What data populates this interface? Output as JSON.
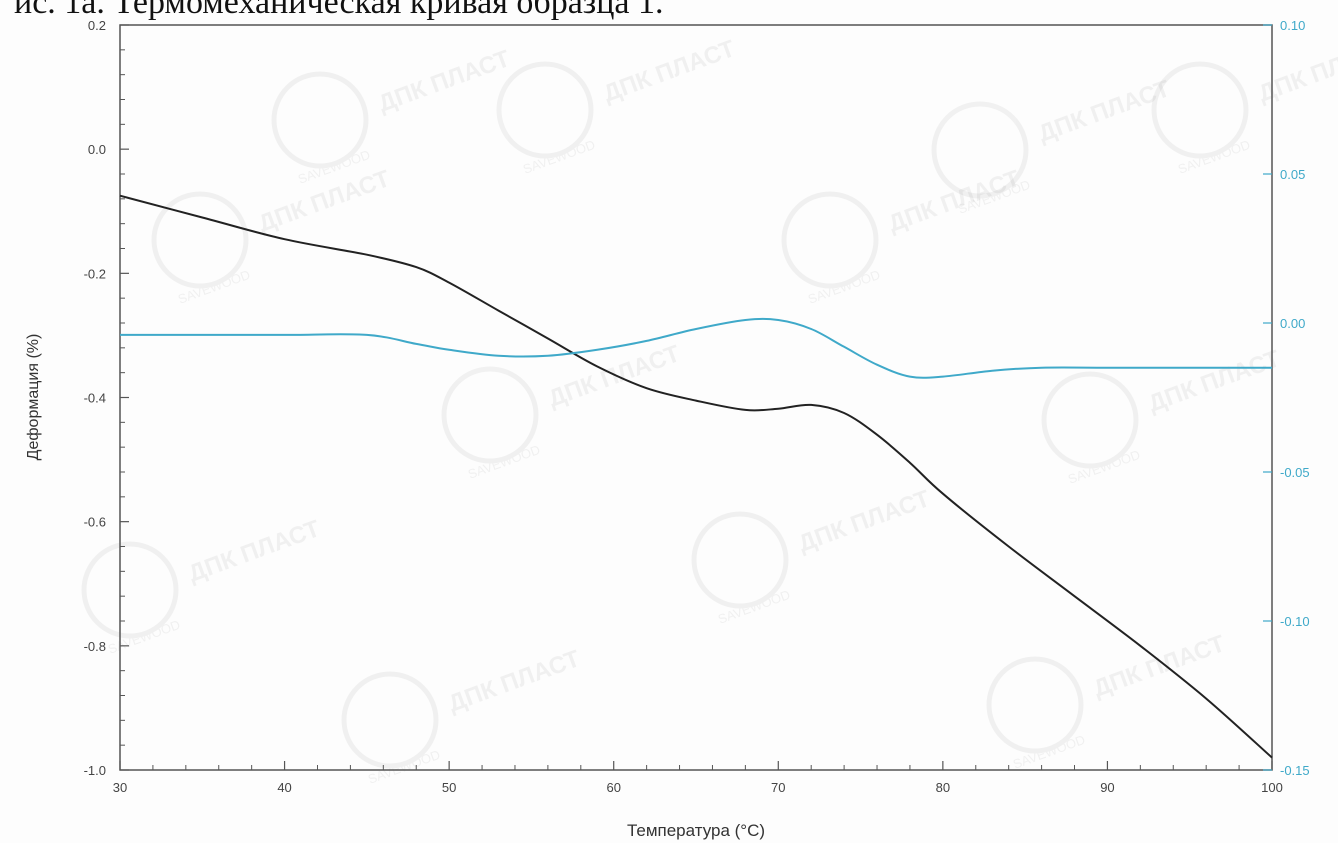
{
  "header": {
    "title": "ис. 1а. Термомеханическая кривая образца 1."
  },
  "watermark": {
    "brand": "ДПК ПЛАСТ",
    "sub": "SAVEWOOD"
  },
  "colors": {
    "primary": "#222222",
    "secondary": "#3fa9c9",
    "axis": "#555555"
  },
  "chart_data": {
    "type": "line",
    "title": "",
    "xlabel": "Температура (°C)",
    "ylabel": "Деформация (%)",
    "xlim": [
      30,
      100
    ],
    "ylim": [
      -1.0,
      0.2
    ],
    "y2lim": [
      -0.15,
      0.1
    ],
    "grid": false,
    "x_ticks": [
      "30",
      "40",
      "50",
      "60",
      "70",
      "80",
      "90",
      "100"
    ],
    "y_ticks": [
      "0.2",
      "0.0",
      "-0.2",
      "-0.4",
      "-0.6",
      "-0.8",
      "-1.0"
    ],
    "y2_ticks": [
      "0.10",
      "0.05",
      "0.00",
      "-0.05",
      "-0.10",
      "-0.15"
    ],
    "series": [
      {
        "axis": "left",
        "color": "#222222",
        "points": [
          [
            30,
            -0.075
          ],
          [
            35,
            -0.11
          ],
          [
            40,
            -0.145
          ],
          [
            45,
            -0.17
          ],
          [
            48,
            -0.19
          ],
          [
            50,
            -0.215
          ],
          [
            53,
            -0.26
          ],
          [
            56,
            -0.305
          ],
          [
            59,
            -0.35
          ],
          [
            62,
            -0.385
          ],
          [
            65,
            -0.405
          ],
          [
            68,
            -0.42
          ],
          [
            70,
            -0.418
          ],
          [
            72,
            -0.412
          ],
          [
            74,
            -0.425
          ],
          [
            76,
            -0.46
          ],
          [
            78,
            -0.505
          ],
          [
            80,
            -0.555
          ],
          [
            84,
            -0.64
          ],
          [
            88,
            -0.72
          ],
          [
            92,
            -0.8
          ],
          [
            96,
            -0.885
          ],
          [
            100,
            -0.98
          ]
        ]
      },
      {
        "axis": "right",
        "color": "#3fa9c9",
        "points": [
          [
            30,
            -0.004
          ],
          [
            35,
            -0.004
          ],
          [
            40,
            -0.004
          ],
          [
            45,
            -0.004
          ],
          [
            48,
            -0.007
          ],
          [
            50,
            -0.009
          ],
          [
            53,
            -0.011
          ],
          [
            56,
            -0.011
          ],
          [
            59,
            -0.009
          ],
          [
            62,
            -0.006
          ],
          [
            65,
            -0.002
          ],
          [
            68,
            0.001
          ],
          [
            70,
            0.001
          ],
          [
            72,
            -0.002
          ],
          [
            74,
            -0.008
          ],
          [
            76,
            -0.014
          ],
          [
            78,
            -0.018
          ],
          [
            80,
            -0.018
          ],
          [
            83,
            -0.016
          ],
          [
            86,
            -0.015
          ],
          [
            90,
            -0.015
          ],
          [
            95,
            -0.015
          ],
          [
            100,
            -0.015
          ]
        ]
      }
    ]
  }
}
